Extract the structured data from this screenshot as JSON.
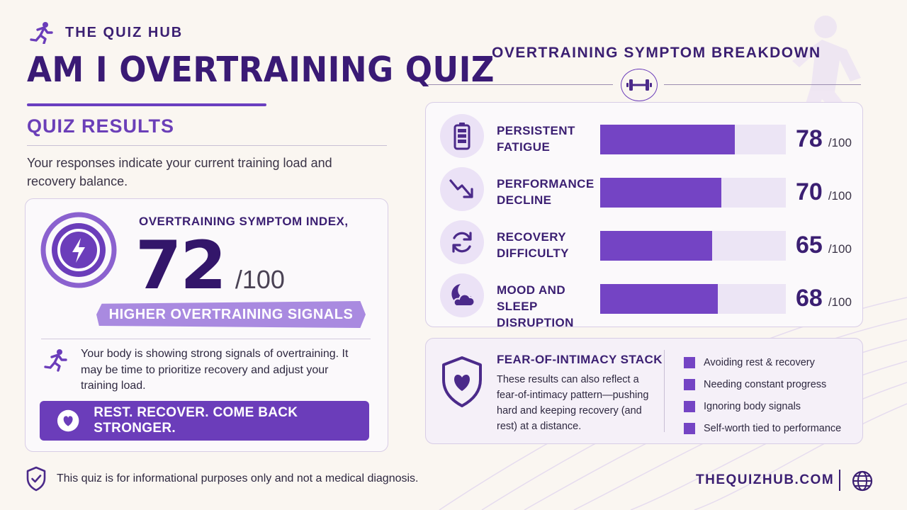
{
  "brand": {
    "name": "THE QUIZ HUB"
  },
  "title": "AM I OVERTRAINING QUIZ",
  "results": {
    "heading": "QUIZ RESULTS",
    "intro": "Your responses indicate your current training load and recovery balance.",
    "index_label": "OVERTRAINING SYMPTOM INDEX,",
    "score": "72",
    "score_max": "/100",
    "score_value": 72,
    "signal_label": "HIGHER OVERTRAINING SIGNALS",
    "message": "Your body is showing strong signals of overtraining. It may be time to prioritize recovery and adjust your training load.",
    "cta_label": "REST. RECOVER. COME BACK STRONGER."
  },
  "disclaimer": "This quiz is for informational purposes only and not a medical diagnosis.",
  "breakdown": {
    "title": "OVERTRAINING SYMPTOM BREAKDOWN",
    "items": [
      {
        "label": "PERSISTENT FATIGUE",
        "value": "78",
        "max": "/100",
        "score": 78,
        "icon": "battery-icon"
      },
      {
        "label": "PERFORMANCE DECLINE",
        "value": "70",
        "max": "/100",
        "score": 70,
        "icon": "trend-down-icon"
      },
      {
        "label": "RECOVERY DIFFICULTY",
        "value": "65",
        "max": "/100",
        "score": 65,
        "icon": "refresh-icon"
      },
      {
        "label": "MOOD AND SLEEP DISRUPTION",
        "value": "68",
        "max": "/100",
        "score": 68,
        "icon": "moon-cloud-icon"
      }
    ]
  },
  "fear_stack": {
    "title": "FEAR-OF-INTIMACY STACK",
    "text": "These results can also reflect a fear-of-intimacy pattern—pushing hard and keeping recovery (and rest) at a distance.",
    "items": [
      "Avoiding rest & recovery",
      "Needing constant progress",
      "Ignoring body signals",
      "Self-worth tied to performance"
    ]
  },
  "footer": {
    "site": "THEQUIZHUB.COM"
  },
  "colors": {
    "primary": "#3b1f72",
    "accent": "#7444c4",
    "accent_light": "#a98ae0",
    "background": "#faf6f1"
  }
}
